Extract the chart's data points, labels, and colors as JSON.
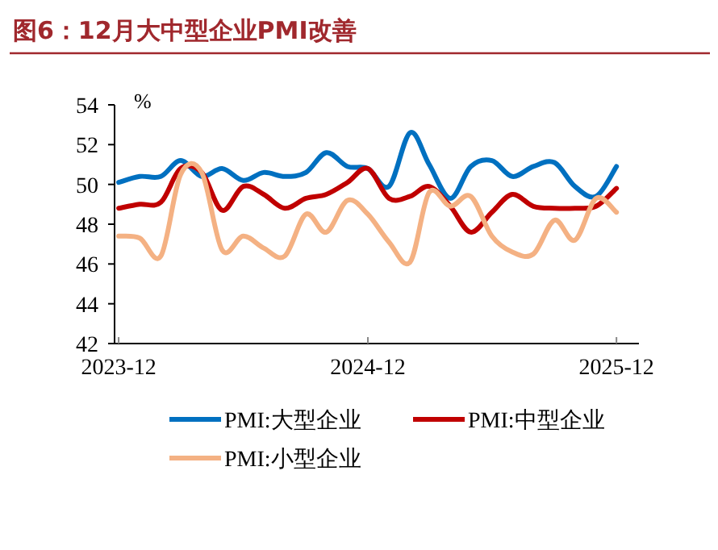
{
  "chart_data": {
    "type": "line",
    "title": "图6：12月大中型企业PMI改善",
    "ylabel": "%",
    "x": [
      "2023-12",
      "2024-01",
      "2024-02",
      "2024-03",
      "2024-04",
      "2024-05",
      "2024-06",
      "2024-07",
      "2024-08",
      "2024-09",
      "2024-10",
      "2024-11",
      "2024-12",
      "2025-01",
      "2025-02",
      "2025-03",
      "2025-04",
      "2025-05",
      "2025-06",
      "2025-07",
      "2025-08",
      "2025-09",
      "2025-10",
      "2025-11",
      "2025-12"
    ],
    "series": [
      {
        "name": "PMI:大型企业",
        "color": "#0070c0",
        "values": [
          50.1,
          50.4,
          50.4,
          51.2,
          50.4,
          50.8,
          50.2,
          50.6,
          50.4,
          50.6,
          51.6,
          50.9,
          50.8,
          49.9,
          52.6,
          51.0,
          49.3,
          50.9,
          51.2,
          50.4,
          50.9,
          51.1,
          49.9,
          49.4,
          50.9
        ]
      },
      {
        "name": "PMI:中型企业",
        "color": "#c00000",
        "values": [
          48.8,
          49.0,
          49.1,
          50.8,
          50.6,
          48.7,
          49.9,
          49.5,
          48.8,
          49.3,
          49.5,
          50.1,
          50.8,
          49.3,
          49.4,
          49.9,
          48.9,
          47.6,
          48.6,
          49.5,
          48.9,
          48.8,
          48.8,
          48.9,
          49.8
        ]
      },
      {
        "name": "PMI:小型企业",
        "color": "#f4b183",
        "values": [
          47.4,
          47.3,
          46.4,
          50.5,
          50.6,
          46.7,
          47.4,
          46.8,
          46.4,
          48.5,
          47.6,
          49.2,
          48.5,
          47.1,
          46.1,
          49.6,
          48.9,
          49.4,
          47.4,
          46.6,
          46.5,
          48.2,
          47.2,
          49.3,
          48.6
        ]
      }
    ],
    "xlim": [
      "2023-11-25",
      "2026-01-03"
    ],
    "xticks": [
      "2023-12",
      "2024-12",
      "2025-12"
    ],
    "ylim": [
      42,
      54
    ],
    "yticks": [
      42,
      44,
      46,
      48,
      50,
      52,
      54
    ],
    "grid": false,
    "legend": "bottom",
    "marker": "none",
    "line_style": "solid"
  }
}
